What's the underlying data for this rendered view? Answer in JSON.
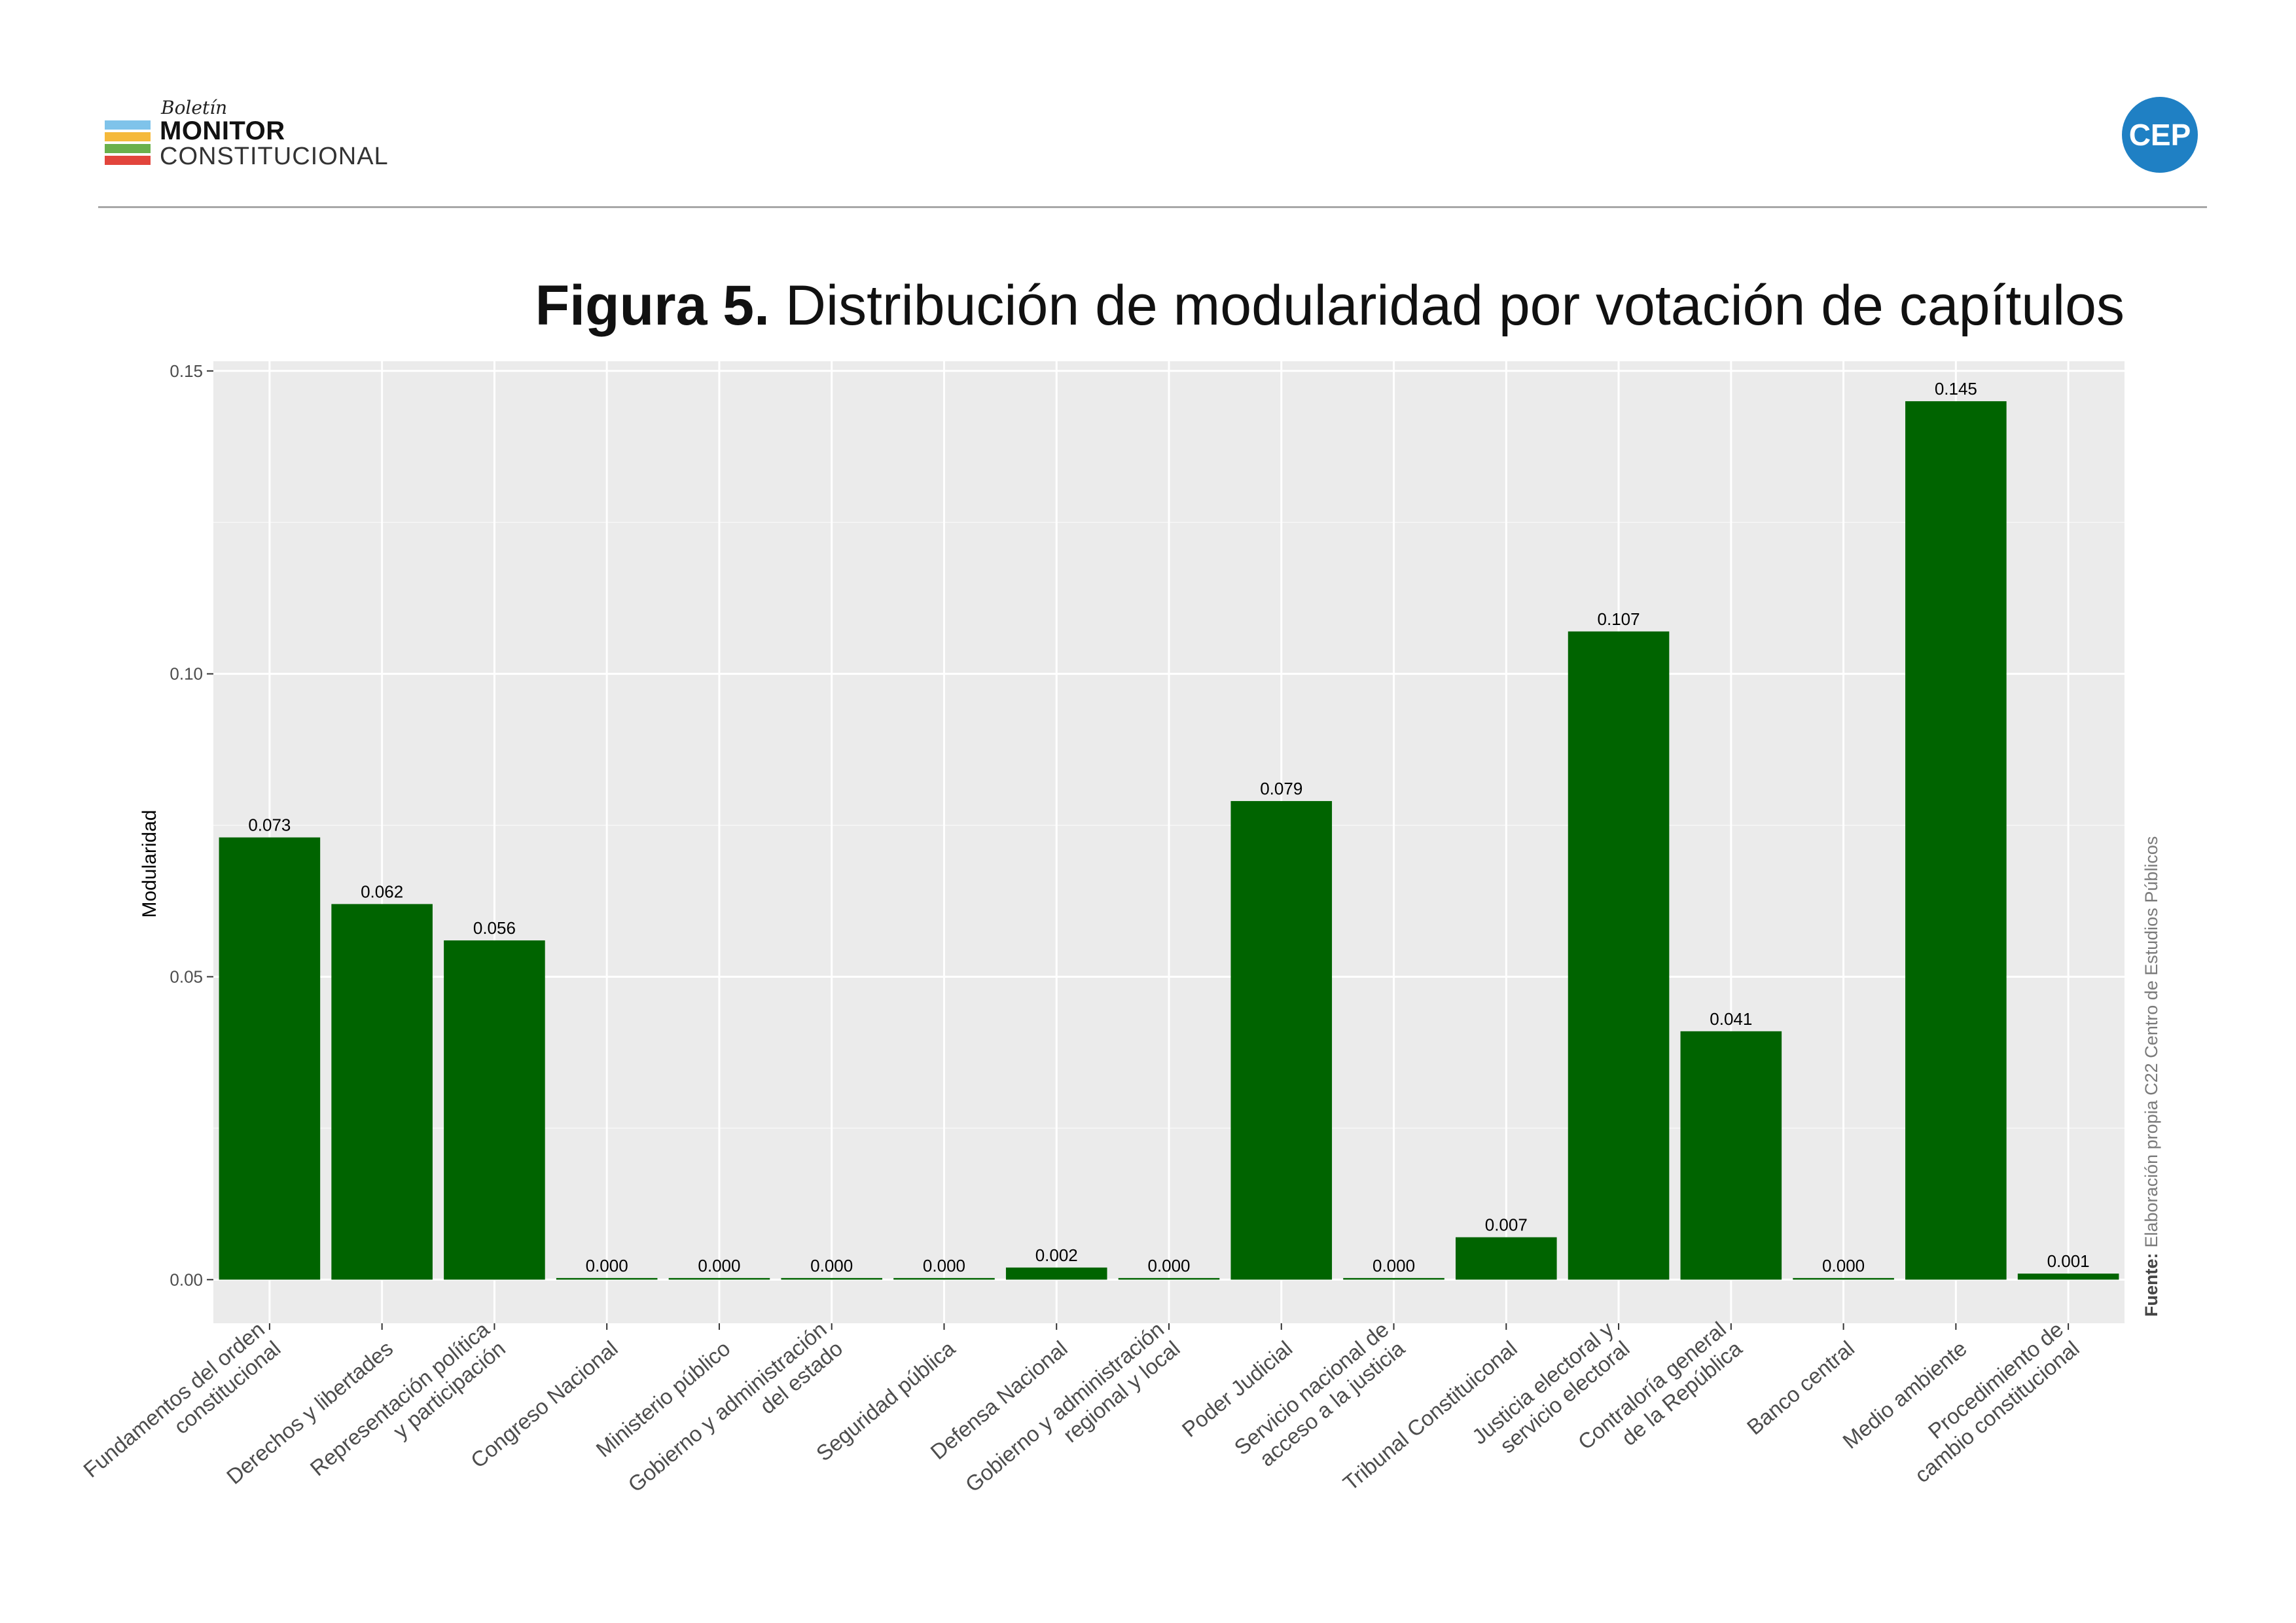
{
  "header": {
    "logo": {
      "boletin": "Boletín",
      "monitor": "MONITOR",
      "constitucional": "CONSTITUCIONAL",
      "bar_colors": [
        "#7fc3ea",
        "#f5b93a",
        "#6ab04c",
        "#e2453c"
      ]
    },
    "badge": "CEP",
    "badge_color": "#1f80c4"
  },
  "figure": {
    "label": "Figura 5.",
    "title": "Distribución de modularidad por votación de capítulos"
  },
  "source": {
    "label": "Fuente:",
    "text": "Elaboración propia C22 Centro de Estudios Públicos"
  },
  "chart_data": {
    "type": "bar",
    "ylabel": "Modularidad",
    "xlabel": "",
    "ylim": [
      -0.0072,
      0.1516
    ],
    "yticks": [
      0.0,
      0.05,
      0.1,
      0.15
    ],
    "ytick_labels": [
      "0.00",
      "0.05",
      "0.10",
      "0.15"
    ],
    "grid": true,
    "background": "#ebebeb",
    "bar_color": "#006400",
    "categories": [
      "Fundamentos del orden\nconstitucional",
      "Derechos y libertades",
      "Representación política\ny participación",
      "Congreso Nacional",
      "Ministerio público",
      "Gobierno y administración\ndel estado",
      "Seguridad pública",
      "Defensa Nacional",
      "Gobierno y administración\nregional y local",
      "Poder Judicial",
      "Servicio nacional de\nacceso a la justicia",
      "Tribunal Constituiconal",
      "Justicia electoral y\nservicio electoral",
      "Contraloría general\nde la República",
      "Banco central",
      "Medio ambiente",
      "Procedimiento de\ncambio constitucional"
    ],
    "values": [
      0.073,
      0.062,
      0.056,
      0.0,
      0.0,
      0.0,
      0.0,
      0.002,
      0.0,
      0.079,
      0.0,
      0.007,
      0.107,
      0.041,
      0.0,
      0.145,
      0.001
    ],
    "value_labels": [
      "0.073",
      "0.062",
      "0.056",
      "0.000",
      "0.000",
      "0.000",
      "0.000",
      "0.002",
      "0.000",
      "0.079",
      "0.000",
      "0.007",
      "0.107",
      "0.041",
      "0.000",
      "0.145",
      "0.001"
    ]
  }
}
